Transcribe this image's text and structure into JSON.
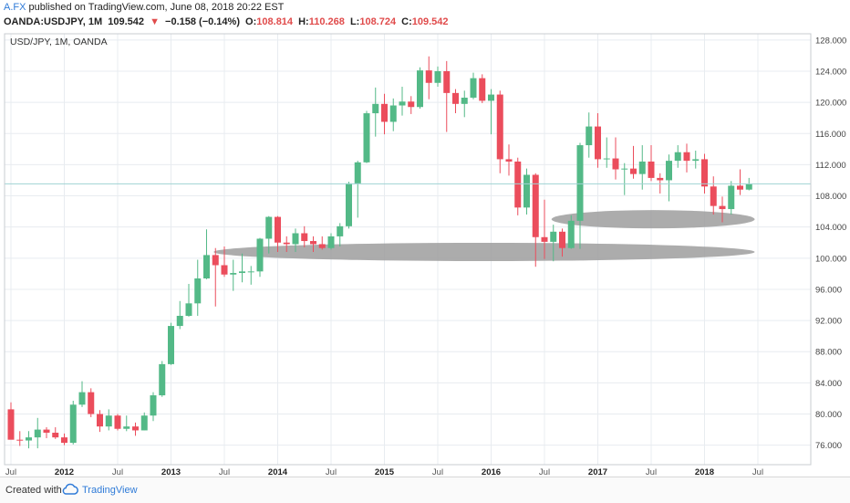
{
  "header": {
    "author": "A.FX",
    "published": "published on TradingView.com, June 08, 2018 20:22 EST",
    "symbol": "OANDA:USDJPY, 1M",
    "price": "109.542",
    "change_arrow": "▼",
    "change": "−0.158 (−0.14%)",
    "o_label": "O:",
    "o_value": "108.814",
    "h_label": "H:",
    "h_value": "110.268",
    "l_label": "L:",
    "l_value": "108.724",
    "c_label": "C:",
    "c_value": "109.542"
  },
  "footer": {
    "created_with": "Created with",
    "brand": "TradingView"
  },
  "colors": {
    "up": "#53b987",
    "down": "#eb4d5c",
    "grid": "#e8ecf0",
    "ellipse": "#9e9e9e",
    "price_line": "#9fd3d3"
  },
  "chart_data": {
    "type": "candlestick",
    "title": "USD/JPY, 1M, OANDA",
    "ylim": [
      73.5,
      128.8
    ],
    "y_ticks": [
      "128.000",
      "124.000",
      "120.000",
      "116.000",
      "112.000",
      "108.000",
      "104.000",
      "100.000",
      "96.000",
      "92.000",
      "88.000",
      "84.000",
      "80.000",
      "76.000"
    ],
    "x_ticks": [
      "Jul",
      "2012",
      "Jul",
      "2013",
      "Jul",
      "2014",
      "Jul",
      "2015",
      "Jul",
      "2016",
      "Jul",
      "2017",
      "Jul",
      "2018",
      "Jul"
    ],
    "x_tick_months": [
      0,
      6,
      12,
      18,
      24,
      30,
      36,
      42,
      48,
      54,
      60,
      66,
      72,
      78,
      84
    ],
    "x_tick_bold": [
      false,
      true,
      false,
      true,
      false,
      true,
      false,
      true,
      false,
      true,
      false,
      true,
      false,
      true,
      false
    ],
    "months": [
      "2011-07",
      "2011-08",
      "2011-09",
      "2011-10",
      "2011-11",
      "2011-12",
      "2012-01",
      "2012-02",
      "2012-03",
      "2012-04",
      "2012-05",
      "2012-06",
      "2012-07",
      "2012-08",
      "2012-09",
      "2012-10",
      "2012-11",
      "2012-12",
      "2013-01",
      "2013-02",
      "2013-03",
      "2013-04",
      "2013-05",
      "2013-06",
      "2013-07",
      "2013-08",
      "2013-09",
      "2013-10",
      "2013-11",
      "2013-12",
      "2014-01",
      "2014-02",
      "2014-03",
      "2014-04",
      "2014-05",
      "2014-06",
      "2014-07",
      "2014-08",
      "2014-09",
      "2014-10",
      "2014-11",
      "2014-12",
      "2015-01",
      "2015-02",
      "2015-03",
      "2015-04",
      "2015-05",
      "2015-06",
      "2015-07",
      "2015-08",
      "2015-09",
      "2015-10",
      "2015-11",
      "2015-12",
      "2016-01",
      "2016-02",
      "2016-03",
      "2016-04",
      "2016-05",
      "2016-06",
      "2016-07",
      "2016-08",
      "2016-09",
      "2016-10",
      "2016-11",
      "2016-12",
      "2017-01",
      "2017-02",
      "2017-03",
      "2017-04",
      "2017-05",
      "2017-06",
      "2017-07",
      "2017-08",
      "2017-09",
      "2017-10",
      "2017-11",
      "2017-12",
      "2018-01",
      "2018-02",
      "2018-03",
      "2018-04",
      "2018-05",
      "2018-06"
    ],
    "ohlc": [
      [
        80.6,
        81.5,
        77.2,
        76.7
      ],
      [
        76.7,
        77.8,
        75.9,
        76.6
      ],
      [
        76.6,
        77.8,
        75.6,
        77.0
      ],
      [
        77.0,
        79.5,
        75.6,
        78.0
      ],
      [
        78.0,
        78.3,
        76.9,
        77.6
      ],
      [
        77.6,
        78.3,
        76.8,
        77.0
      ],
      [
        77.0,
        77.5,
        76.0,
        76.3
      ],
      [
        76.3,
        81.7,
        76.1,
        81.2
      ],
      [
        81.2,
        84.2,
        80.9,
        82.8
      ],
      [
        82.8,
        83.3,
        79.6,
        80.0
      ],
      [
        80.0,
        80.5,
        77.7,
        78.4
      ],
      [
        78.4,
        80.6,
        77.9,
        79.8
      ],
      [
        79.8,
        80.0,
        77.9,
        78.1
      ],
      [
        78.1,
        79.8,
        77.8,
        78.4
      ],
      [
        78.4,
        78.9,
        77.2,
        77.9
      ],
      [
        77.9,
        80.2,
        77.9,
        79.8
      ],
      [
        79.8,
        82.8,
        79.1,
        82.4
      ],
      [
        82.4,
        86.8,
        82.2,
        86.4
      ],
      [
        86.4,
        91.7,
        86.3,
        91.3
      ],
      [
        91.3,
        94.5,
        90.9,
        92.6
      ],
      [
        92.6,
        96.7,
        92.5,
        94.2
      ],
      [
        94.2,
        99.8,
        92.6,
        97.4
      ],
      [
        97.4,
        103.7,
        97.3,
        100.4
      ],
      [
        100.4,
        101.3,
        93.8,
        99.1
      ],
      [
        99.1,
        101.5,
        97.6,
        97.9
      ],
      [
        97.9,
        99.8,
        95.8,
        98.1
      ],
      [
        98.1,
        100.6,
        96.9,
        98.3
      ],
      [
        98.3,
        99.0,
        96.6,
        98.3
      ],
      [
        98.3,
        102.6,
        97.6,
        102.5
      ],
      [
        102.5,
        105.4,
        100.6,
        105.3
      ],
      [
        105.3,
        105.4,
        100.8,
        102.0
      ],
      [
        102.0,
        102.8,
        100.8,
        101.8
      ],
      [
        101.8,
        103.8,
        100.8,
        103.2
      ],
      [
        103.2,
        104.1,
        101.4,
        102.2
      ],
      [
        102.2,
        102.8,
        100.8,
        101.8
      ],
      [
        101.8,
        102.8,
        101.1,
        101.3
      ],
      [
        101.3,
        103.2,
        101.1,
        102.8
      ],
      [
        102.8,
        104.5,
        101.5,
        104.1
      ],
      [
        104.1,
        109.8,
        103.8,
        109.6
      ],
      [
        109.6,
        112.5,
        105.2,
        112.3
      ],
      [
        112.3,
        118.9,
        112.2,
        118.6
      ],
      [
        118.6,
        121.9,
        115.6,
        119.8
      ],
      [
        119.8,
        121.1,
        115.9,
        117.5
      ],
      [
        117.5,
        120.5,
        116.3,
        119.6
      ],
      [
        119.6,
        122.0,
        118.3,
        120.1
      ],
      [
        120.1,
        120.8,
        118.5,
        119.4
      ],
      [
        119.4,
        124.5,
        119.2,
        124.1
      ],
      [
        124.1,
        125.9,
        120.4,
        122.5
      ],
      [
        122.5,
        124.6,
        122.0,
        124.0
      ],
      [
        124.0,
        125.3,
        116.2,
        121.2
      ],
      [
        121.2,
        121.7,
        118.6,
        119.8
      ],
      [
        119.8,
        121.5,
        118.1,
        120.6
      ],
      [
        120.6,
        123.8,
        120.4,
        123.1
      ],
      [
        123.1,
        123.6,
        119.9,
        120.2
      ],
      [
        120.2,
        121.7,
        115.9,
        121.0
      ],
      [
        121.0,
        121.5,
        110.9,
        112.7
      ],
      [
        112.7,
        114.6,
        110.6,
        112.4
      ],
      [
        112.4,
        112.9,
        105.5,
        106.5
      ],
      [
        106.5,
        111.5,
        105.6,
        110.7
      ],
      [
        110.7,
        110.9,
        98.9,
        102.7
      ],
      [
        102.7,
        107.5,
        99.9,
        102.1
      ],
      [
        102.1,
        104.3,
        99.6,
        103.4
      ],
      [
        103.4,
        103.8,
        100.2,
        101.3
      ],
      [
        101.3,
        105.5,
        101.2,
        104.8
      ],
      [
        104.8,
        114.8,
        101.2,
        114.5
      ],
      [
        114.5,
        118.7,
        112.9,
        116.9
      ],
      [
        116.9,
        118.6,
        111.6,
        112.7
      ],
      [
        112.7,
        115.5,
        111.6,
        112.8
      ],
      [
        112.8,
        115.5,
        110.1,
        111.4
      ],
      [
        111.4,
        112.2,
        108.1,
        111.5
      ],
      [
        111.5,
        114.4,
        110.2,
        110.8
      ],
      [
        110.8,
        114.5,
        108.8,
        112.4
      ],
      [
        112.4,
        114.5,
        109.9,
        110.3
      ],
      [
        110.3,
        110.9,
        108.3,
        110.0
      ],
      [
        110.0,
        113.3,
        107.3,
        112.5
      ],
      [
        112.5,
        114.5,
        111.6,
        113.6
      ],
      [
        113.6,
        114.7,
        111.0,
        112.5
      ],
      [
        112.5,
        113.8,
        111.5,
        112.7
      ],
      [
        112.7,
        113.4,
        108.3,
        109.2
      ],
      [
        109.2,
        110.5,
        105.6,
        106.7
      ],
      [
        106.7,
        107.9,
        104.6,
        106.3
      ],
      [
        106.3,
        109.9,
        105.6,
        109.3
      ],
      [
        109.3,
        111.4,
        108.1,
        108.8
      ],
      [
        108.8,
        110.3,
        108.7,
        109.5
      ]
    ],
    "last_price": 109.542,
    "support_zones": [
      {
        "start": "2013-06",
        "end": "2018-05",
        "center_price": 100.8
      },
      {
        "start": "2016-08",
        "end": "2018-05",
        "center_price": 105.0
      }
    ]
  }
}
